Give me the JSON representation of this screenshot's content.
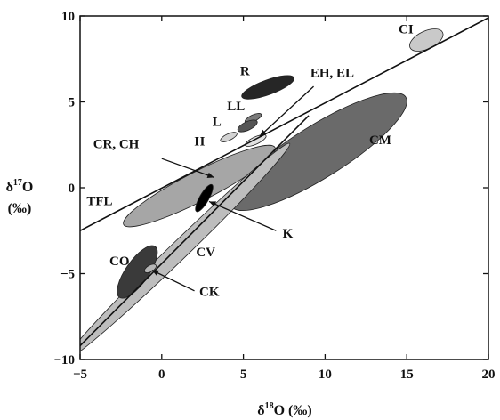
{
  "chart_data": {
    "type": "scatter",
    "title": "",
    "xlabel": {
      "base": "δ",
      "sup": "18",
      "rest": "O (‰)"
    },
    "ylabel": {
      "base": "δ",
      "sup": "17",
      "rest": "O",
      "unit": "(‰)"
    },
    "xlim": [
      -5,
      20
    ],
    "ylim": [
      -10,
      10
    ],
    "grid": false,
    "x_ticks": [
      -5,
      0,
      5,
      10,
      15,
      20
    ],
    "y_ticks": [
      -10,
      -5,
      0,
      5,
      10
    ],
    "x_tick_labels": [
      "−5",
      "0",
      "5",
      "10",
      "15",
      "20"
    ],
    "y_tick_labels": [
      "−10",
      "−5",
      "0",
      "5",
      "10"
    ],
    "reference_lines": [
      {
        "id": "TFL",
        "label": "TFL",
        "from": [
          -5,
          -2.5
        ],
        "to": [
          20,
          9.9
        ]
      },
      {
        "id": "slope1",
        "label": "",
        "from": [
          -5,
          -9.2
        ],
        "to": [
          9,
          4.2
        ]
      }
    ],
    "regions": [
      {
        "id": "CI",
        "label": "CI",
        "cx": 16.2,
        "cy": 8.6,
        "rx": 1.1,
        "ry": 0.55,
        "angle": 25,
        "color": "#c9c9c9"
      },
      {
        "id": "R",
        "label": "R",
        "cx": 6.5,
        "cy": 5.85,
        "rx": 1.7,
        "ry": 0.45,
        "angle": 20,
        "color": "#262626"
      },
      {
        "id": "LL",
        "label": "LL",
        "cx": 5.6,
        "cy": 4.05,
        "rx": 0.55,
        "ry": 0.2,
        "angle": 25,
        "color": "#7a7a7a"
      },
      {
        "id": "L",
        "label": "L",
        "cx": 5.25,
        "cy": 3.6,
        "rx": 0.65,
        "ry": 0.26,
        "angle": 25,
        "color": "#555555"
      },
      {
        "id": "H",
        "label": "H",
        "cx": 4.1,
        "cy": 2.95,
        "rx": 0.55,
        "ry": 0.2,
        "angle": 25,
        "color": "#d2d2d2"
      },
      {
        "id": "EH_EL",
        "label": "EH, EL",
        "cx": 5.75,
        "cy": 2.75,
        "rx": 0.7,
        "ry": 0.22,
        "angle": 25,
        "color": "#e2e2e2"
      },
      {
        "id": "CM",
        "label": "CM",
        "cx": 9.6,
        "cy": 2.1,
        "rx": 6.3,
        "ry": 1.6,
        "angle": 32,
        "color": "#6a6a6a"
      },
      {
        "id": "CR_CH",
        "label": "CR, CH",
        "cx": 2.3,
        "cy": 0.1,
        "rx": 5.2,
        "ry": 0.9,
        "angle": 27,
        "color": "#a6a6a6"
      },
      {
        "id": "K",
        "label": "K",
        "cx": 2.6,
        "cy": -0.6,
        "rx": 0.95,
        "ry": 0.28,
        "angle": 60,
        "color": "#000000"
      },
      {
        "id": "CV",
        "label": "CV",
        "cx": 1.0,
        "cy": -3.7,
        "rx": 9.5,
        "ry": 0.55,
        "angle": 44,
        "color": "#bdbdbd"
      },
      {
        "id": "CO",
        "label": "CO",
        "cx": -1.5,
        "cy": -4.9,
        "rx": 1.9,
        "ry": 0.7,
        "angle": 55,
        "color": "#3a3a3a"
      },
      {
        "id": "CK",
        "label": "CK",
        "cx": -0.7,
        "cy": -4.7,
        "rx": 0.4,
        "ry": 0.2,
        "angle": 30,
        "color": "#b5b5b5"
      }
    ],
    "labels": [
      {
        "for": "CI",
        "text": "CI",
        "x": 14.5,
        "y": 9.0
      },
      {
        "for": "R",
        "text": "R",
        "x": 4.8,
        "y": 6.55
      },
      {
        "for": "EH_EL",
        "text": "EH, EL",
        "x": 9.1,
        "y": 6.45
      },
      {
        "for": "LL",
        "text": "LL",
        "x": 4.0,
        "y": 4.5
      },
      {
        "for": "L",
        "text": "L",
        "x": 3.1,
        "y": 3.6
      },
      {
        "for": "H",
        "text": "H",
        "x": 2.0,
        "y": 2.45
      },
      {
        "for": "CR_CH",
        "text": "CR, CH",
        "x": -4.2,
        "y": 2.3
      },
      {
        "for": "CM",
        "text": "CM",
        "x": 12.7,
        "y": 2.55
      },
      {
        "for": "TFL",
        "text": "TFL",
        "x": -4.6,
        "y": -1.0
      },
      {
        "for": "K",
        "text": "K",
        "x": 7.4,
        "y": -2.9
      },
      {
        "for": "CV",
        "text": "CV",
        "x": 2.1,
        "y": -4.0
      },
      {
        "for": "CO",
        "text": "CO",
        "x": -3.2,
        "y": -4.5
      },
      {
        "for": "CK",
        "text": "CK",
        "x": 2.3,
        "y": -6.3
      }
    ],
    "leaders": [
      {
        "for": "EH_EL",
        "from": [
          9.3,
          5.9
        ],
        "to": [
          6.0,
          3.0
        ]
      },
      {
        "for": "CR_CH",
        "from": [
          0.0,
          1.7
        ],
        "to": [
          3.2,
          0.6
        ]
      },
      {
        "for": "K",
        "from": [
          7.0,
          -2.5
        ],
        "to": [
          2.9,
          -0.8
        ]
      },
      {
        "for": "CK",
        "from": [
          2.0,
          -6.0
        ],
        "to": [
          -0.6,
          -4.8
        ]
      }
    ]
  }
}
